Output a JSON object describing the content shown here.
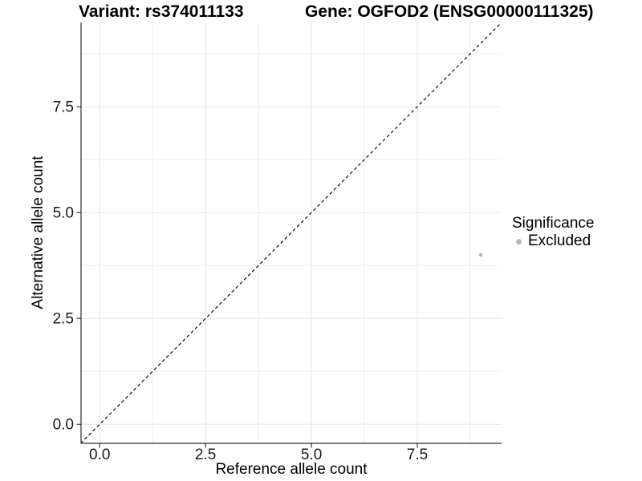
{
  "figure": {
    "title_left": "Variant: rs374011133",
    "title_right": "Gene: OGFOD2 (ENSG00000111325)"
  },
  "chart_data": {
    "type": "scatter",
    "title": "Variant: rs374011133        Gene: OGFOD2 (ENSG00000111325)",
    "title_left": "Variant: rs374011133",
    "title_right": "Gene: OGFOD2 (ENSG00000111325)",
    "xlabel": "Reference allele count",
    "ylabel": "Alternative allele count",
    "xlim": [
      -0.44,
      9.49
    ],
    "ylim": [
      -0.45,
      9.49
    ],
    "xticks": {
      "values": [
        0,
        2.5,
        5,
        7.5
      ],
      "labels": [
        "0.0",
        "2.5",
        "5.0",
        "7.5"
      ]
    },
    "yticks": {
      "values": [
        0,
        2.5,
        5,
        7.5
      ],
      "labels": [
        "0.0",
        "2.5",
        "5.0",
        "7.5"
      ]
    },
    "xminor": [
      1.25,
      3.75,
      6.25,
      8.75
    ],
    "yminor": [
      1.25,
      3.75,
      6.25,
      8.75
    ],
    "grid": "major+minor",
    "series": [
      {
        "name": "Excluded",
        "marker": "circle",
        "color": "#b8b8b8",
        "points": [
          {
            "x": 9,
            "y": 4
          }
        ]
      }
    ],
    "reference_line": {
      "kind": "identity y=x",
      "style": "dashed",
      "color": "#000000"
    },
    "legend": {
      "title": "Significance",
      "position": "right",
      "items": [
        {
          "label": "Excluded",
          "color": "#b8b8b8",
          "marker": "circle"
        }
      ]
    }
  },
  "colors": {
    "background": "#ffffff",
    "grid_major": "#e6e6e6",
    "grid_minor": "#ededed",
    "axis_line": "#2b2b2b",
    "tick_text": "#1a1a1a",
    "point": "#b8b8b8",
    "reference_line": "#000000"
  }
}
